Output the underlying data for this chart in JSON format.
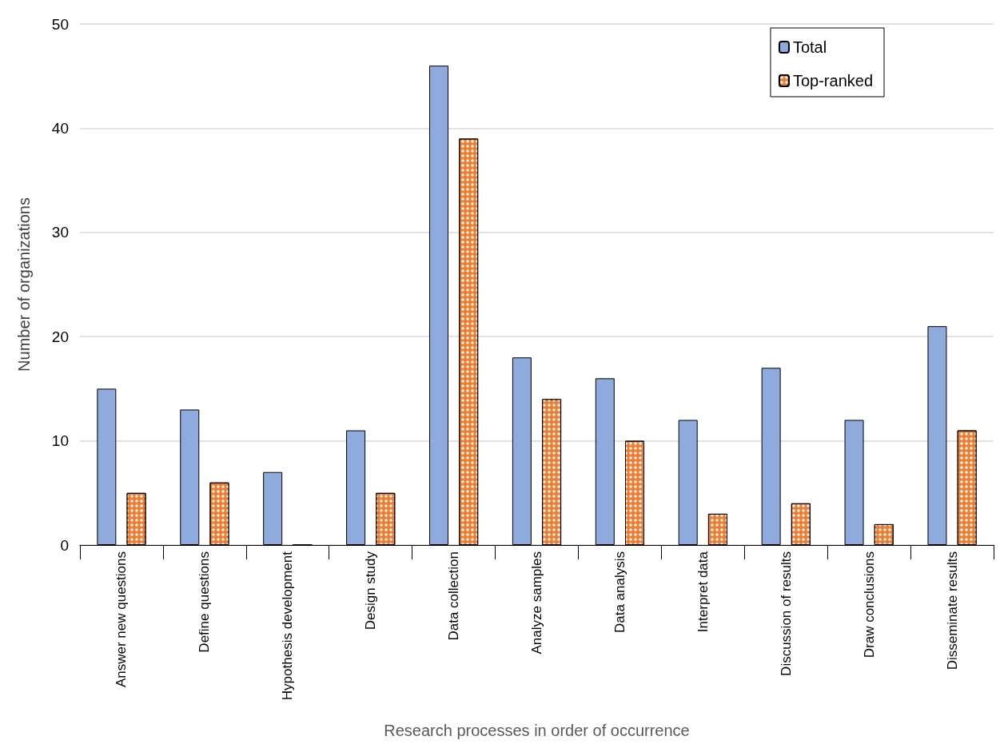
{
  "chart_data": {
    "type": "bar",
    "xlabel": "Research processes in order of occurrence",
    "ylabel": "Number of organizations",
    "categories": [
      "Answer new questions",
      "Define questions",
      "Hypothesis development",
      "Design study",
      "Data collection",
      "Analyze samples",
      "Data analysis",
      "Interpret data",
      "Discussion of results",
      "Draw conclusions",
      "Disseminate results"
    ],
    "series": [
      {
        "name": "Total",
        "color": "#8faadc",
        "values": [
          15,
          13,
          7,
          11,
          46,
          18,
          16,
          12,
          17,
          12,
          21
        ]
      },
      {
        "name": "Top-ranked",
        "color": "#ed7d31",
        "values": [
          5,
          6,
          0,
          5,
          39,
          14,
          10,
          3,
          4,
          2,
          11
        ]
      }
    ],
    "ylim": [
      0,
      50
    ],
    "yticks": [
      0,
      10,
      20,
      30,
      40,
      50
    ],
    "grid": "y",
    "legend": "top right"
  }
}
